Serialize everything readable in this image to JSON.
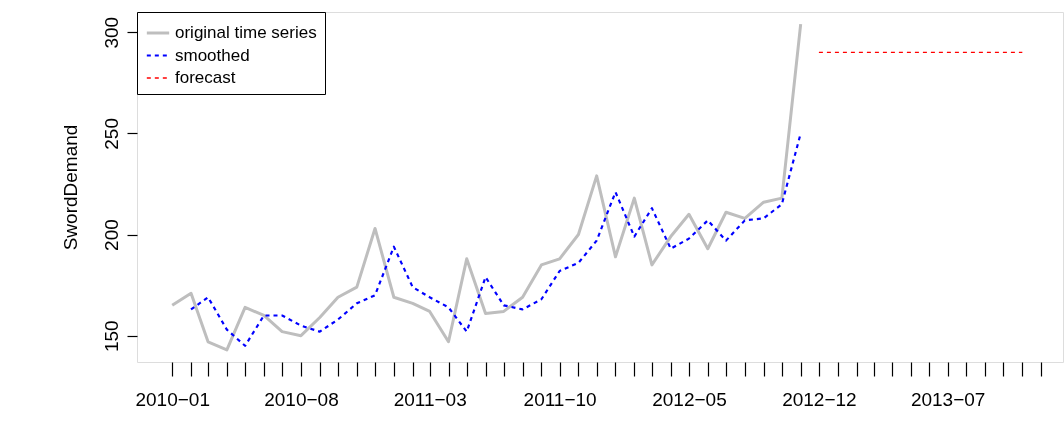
{
  "chart_data": {
    "type": "line",
    "ylabel": "SwordDemand",
    "series": [
      {
        "name": "original time series",
        "color": "#bebebe",
        "line_style": "solid",
        "x": [
          "2010-01",
          "2010-02",
          "2010-03",
          "2010-04",
          "2010-05",
          "2010-06",
          "2010-07",
          "2010-08",
          "2010-09",
          "2010-10",
          "2010-11",
          "2010-12",
          "2011-01",
          "2011-02",
          "2011-03",
          "2011-04",
          "2011-05",
          "2011-06",
          "2011-07",
          "2011-08",
          "2011-09",
          "2011-10",
          "2011-11",
          "2011-12",
          "2012-01",
          "2012-02",
          "2012-03",
          "2012-04",
          "2012-05",
          "2012-06",
          "2012-07",
          "2012-08",
          "2012-09",
          "2012-10",
          "2012-11"
        ],
        "values": [
          165,
          171,
          147,
          143,
          164,
          160,
          152,
          150,
          159,
          169,
          174,
          203,
          169,
          166,
          162,
          147,
          188,
          161,
          162,
          169,
          185,
          188,
          200,
          229,
          189,
          218,
          185,
          199,
          210,
          193,
          211,
          208,
          216,
          218,
          304
        ]
      },
      {
        "name": "smoothed",
        "color": "#0000ff",
        "line_style": "dashed",
        "x": [
          "2010-02",
          "2010-03",
          "2010-04",
          "2010-05",
          "2010-06",
          "2010-07",
          "2010-08",
          "2010-09",
          "2010-10",
          "2010-11",
          "2010-12",
          "2011-01",
          "2011-02",
          "2011-03",
          "2011-04",
          "2011-05",
          "2011-06",
          "2011-07",
          "2011-08",
          "2011-09",
          "2011-10",
          "2011-11",
          "2011-12",
          "2012-01",
          "2012-02",
          "2012-03",
          "2012-04",
          "2012-05",
          "2012-06",
          "2012-07",
          "2012-08",
          "2012-09",
          "2012-10",
          "2012-11"
        ],
        "values": [
          163,
          169,
          153,
          145,
          160,
          160,
          155,
          152,
          158,
          166,
          170,
          194,
          174,
          169,
          164,
          152,
          179,
          165,
          163,
          168,
          182,
          186,
          197,
          221,
          199,
          213,
          193,
          198,
          207,
          197,
          207,
          208,
          215,
          250
        ]
      },
      {
        "name": "forecast",
        "color": "#ff0000",
        "line_style": "dashed",
        "x": [
          "2012-12",
          "2013-01",
          "2013-02",
          "2013-03",
          "2013-04",
          "2013-05",
          "2013-06",
          "2013-07",
          "2013-08",
          "2013-09",
          "2013-10",
          "2013-11"
        ],
        "values": [
          290,
          290,
          290,
          290,
          290,
          290,
          290,
          290,
          290,
          290,
          290,
          290
        ]
      }
    ],
    "xlim": [
      "2009-11-04",
      "2014-01-07"
    ],
    "xticks": [
      {
        "value": "2010-01",
        "label": "2010−01"
      },
      {
        "value": "2010-02",
        "label": null
      },
      {
        "value": "2010-03",
        "label": null
      },
      {
        "value": "2010-04",
        "label": null
      },
      {
        "value": "2010-05",
        "label": null
      },
      {
        "value": "2010-06",
        "label": null
      },
      {
        "value": "2010-07",
        "label": null
      },
      {
        "value": "2010-08",
        "label": "2010−08"
      },
      {
        "value": "2010-09",
        "label": null
      },
      {
        "value": "2010-10",
        "label": null
      },
      {
        "value": "2010-11",
        "label": null
      },
      {
        "value": "2010-12",
        "label": null
      },
      {
        "value": "2011-01",
        "label": null
      },
      {
        "value": "2011-02",
        "label": null
      },
      {
        "value": "2011-03",
        "label": "2011−03"
      },
      {
        "value": "2011-04",
        "label": null
      },
      {
        "value": "2011-05",
        "label": null
      },
      {
        "value": "2011-06",
        "label": null
      },
      {
        "value": "2011-07",
        "label": null
      },
      {
        "value": "2011-08",
        "label": null
      },
      {
        "value": "2011-09",
        "label": null
      },
      {
        "value": "2011-10",
        "label": "2011−10"
      },
      {
        "value": "2011-11",
        "label": null
      },
      {
        "value": "2011-12",
        "label": null
      },
      {
        "value": "2012-01",
        "label": null
      },
      {
        "value": "2012-02",
        "label": null
      },
      {
        "value": "2012-03",
        "label": null
      },
      {
        "value": "2012-04",
        "label": null
      },
      {
        "value": "2012-05",
        "label": "2012−05"
      },
      {
        "value": "2012-06",
        "label": null
      },
      {
        "value": "2012-07",
        "label": null
      },
      {
        "value": "2012-08",
        "label": null
      },
      {
        "value": "2012-09",
        "label": null
      },
      {
        "value": "2012-10",
        "label": null
      },
      {
        "value": "2012-11",
        "label": null
      },
      {
        "value": "2012-12",
        "label": "2012−12"
      },
      {
        "value": "2013-01",
        "label": null
      },
      {
        "value": "2013-02",
        "label": null
      },
      {
        "value": "2013-03",
        "label": null
      },
      {
        "value": "2013-04",
        "label": null
      },
      {
        "value": "2013-05",
        "label": null
      },
      {
        "value": "2013-06",
        "label": null
      },
      {
        "value": "2013-07",
        "label": "2013−07"
      },
      {
        "value": "2013-08",
        "label": null
      },
      {
        "value": "2013-09",
        "label": null
      },
      {
        "value": "2013-10",
        "label": null
      },
      {
        "value": "2013-11",
        "label": null
      },
      {
        "value": "2013-12",
        "label": null
      }
    ],
    "ylim": [
      137,
      310
    ],
    "yticks": [
      150,
      200,
      250,
      300
    ],
    "grid": false,
    "legend": "top left",
    "marker": "none"
  }
}
